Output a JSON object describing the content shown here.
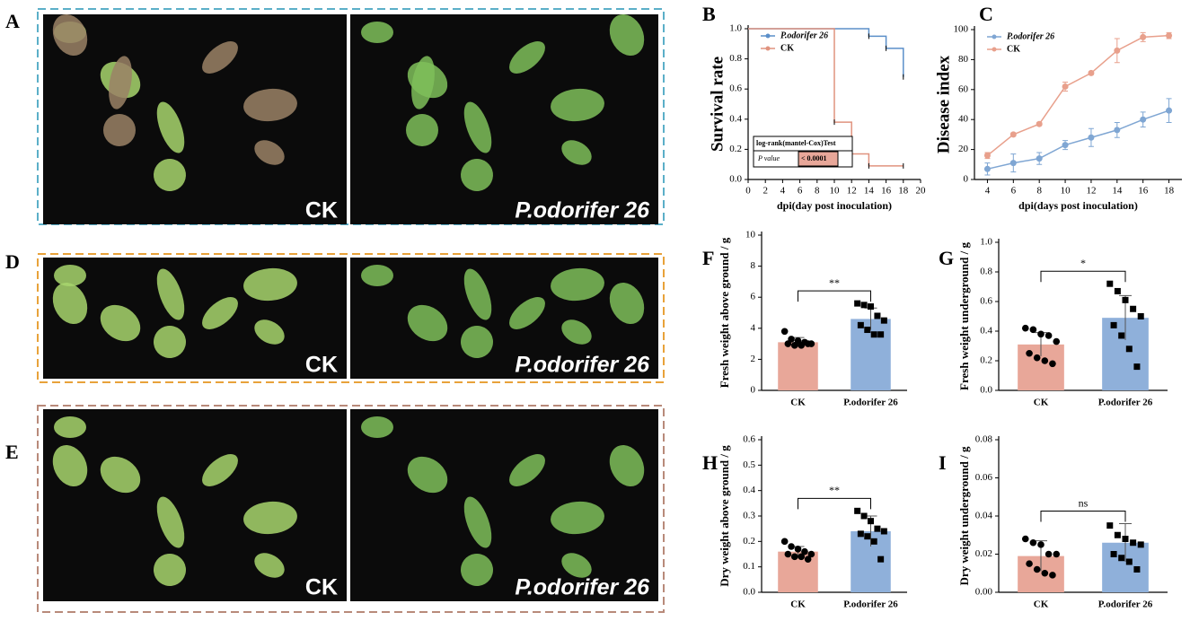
{
  "panel_letters": [
    "A",
    "D",
    "E"
  ],
  "photos": [
    {
      "labels": [
        "CK",
        "P.odorifer 26"
      ]
    },
    {
      "labels": [
        "CK",
        "P.odorifer 26"
      ]
    },
    {
      "labels": [
        "CK",
        "P.odorifer 26"
      ]
    }
  ],
  "chart_data": [
    {
      "type": "step",
      "panel": "B",
      "xlabel": "dpi(day post inoculation)",
      "ylabel": "Survival rate",
      "xlim": [
        0,
        20
      ],
      "xticks": [
        0,
        2,
        4,
        6,
        8,
        10,
        12,
        14,
        16,
        18,
        20
      ],
      "ylim": [
        0,
        1
      ],
      "yticks": [
        {
          "value": 0,
          "label": "0.0"
        },
        0.2,
        0.4,
        0.6,
        0.8,
        {
          "value": 1,
          "label": "1.0"
        }
      ],
      "series": [
        {
          "name": "P.odorifer 26",
          "color": "#5b8fc9",
          "x": [
            0,
            14,
            16,
            18
          ],
          "values": [
            1,
            0.95,
            0.87,
            0.68
          ]
        },
        {
          "name": "CK",
          "color": "#e0937f",
          "x": [
            0,
            10,
            12,
            14,
            18
          ],
          "values": [
            1,
            0.38,
            0.17,
            0.09,
            0.09
          ]
        }
      ],
      "annotation": {
        "header": "log-rank(mantel-Cox)Test",
        "cells": [
          "P value",
          "< 0.0001"
        ]
      }
    },
    {
      "type": "line",
      "panel": "C",
      "xlabel": "dpi(days post inoculation)",
      "ylabel": "Disease index",
      "xlim": [
        3,
        19
      ],
      "xticks": [
        4,
        6,
        8,
        10,
        12,
        14,
        16,
        18
      ],
      "ylim": [
        0,
        100
      ],
      "yticks": [
        0,
        20,
        40,
        60,
        80,
        100
      ],
      "x": [
        4,
        6,
        8,
        10,
        12,
        14,
        16,
        18
      ],
      "series": [
        {
          "name": "P.odorifer 26",
          "color": "#7fa6d3",
          "values": [
            7,
            11,
            14,
            23,
            28,
            33,
            40,
            46
          ],
          "errors": [
            4,
            6,
            4,
            3,
            6,
            5,
            5,
            8
          ]
        },
        {
          "name": "CK",
          "color": "#e8a08c",
          "values": [
            16,
            30,
            37,
            62,
            71,
            86,
            95,
            96
          ],
          "errors": [
            2,
            1,
            1,
            3,
            1,
            8,
            3,
            2
          ]
        }
      ]
    },
    {
      "type": "bar",
      "panel": "F",
      "ylabel": "Fresh weight above ground / g",
      "categories": [
        "CK",
        "P.odorifer 26"
      ],
      "ylim": [
        0,
        10
      ],
      "yticks": [
        0,
        2,
        4,
        6,
        8,
        10
      ],
      "colors": [
        "#e8a799",
        "#8fb0da"
      ],
      "markers": [
        "circle",
        "square"
      ],
      "values": [
        3.1,
        4.6
      ],
      "errors": [
        0.3,
        0.7
      ],
      "significance": "**",
      "points": [
        [
          3.8,
          3.3,
          3.2,
          3.1,
          3.0,
          3.0,
          2.9,
          2.9,
          3.0
        ],
        [
          5.6,
          5.5,
          5.4,
          4.8,
          4.5,
          4.2,
          3.9,
          3.6,
          3.6
        ]
      ]
    },
    {
      "type": "bar",
      "panel": "G",
      "ylabel": "Fresh weight underground / g",
      "categories": [
        "CK",
        "P.odorifer 26"
      ],
      "ylim": [
        0,
        1
      ],
      "yticks": [
        {
          "value": 0,
          "label": "0.0"
        },
        0.2,
        0.4,
        0.6,
        0.8,
        {
          "value": 1,
          "label": "1.0"
        }
      ],
      "colors": [
        "#e8a799",
        "#8fb0da"
      ],
      "markers": [
        "circle",
        "square"
      ],
      "values": [
        0.31,
        0.49
      ],
      "errors": [
        0.08,
        0.15
      ],
      "significance": "*",
      "points": [
        [
          0.42,
          0.41,
          0.38,
          0.37,
          0.33,
          0.25,
          0.22,
          0.2,
          0.18
        ],
        [
          0.72,
          0.67,
          0.61,
          0.55,
          0.5,
          0.44,
          0.37,
          0.28,
          0.16
        ]
      ]
    },
    {
      "type": "bar",
      "panel": "H",
      "ylabel": "Dry weight above ground / g",
      "categories": [
        "CK",
        "P.odorifer 26"
      ],
      "ylim": [
        0,
        0.6
      ],
      "yticks": [
        {
          "value": 0,
          "label": "0.0"
        },
        0.1,
        0.2,
        0.3,
        0.4,
        0.5,
        0.6
      ],
      "colors": [
        "#e8a799",
        "#8fb0da"
      ],
      "markers": [
        "circle",
        "square"
      ],
      "values": [
        0.16,
        0.24
      ],
      "errors": [
        0.02,
        0.06
      ],
      "significance": "**",
      "points": [
        [
          0.2,
          0.18,
          0.17,
          0.16,
          0.15,
          0.15,
          0.14,
          0.14,
          0.13
        ],
        [
          0.32,
          0.3,
          0.28,
          0.25,
          0.24,
          0.23,
          0.22,
          0.2,
          0.13
        ]
      ]
    },
    {
      "type": "bar",
      "panel": "I",
      "ylabel": "Dry weight underground / g",
      "categories": [
        "CK",
        "P.odorifer 26"
      ],
      "ylim": [
        0,
        0.08
      ],
      "yticks": [
        {
          "value": 0,
          "label": "0.00"
        },
        {
          "value": 0.02,
          "label": "0.02"
        },
        {
          "value": 0.04,
          "label": "0.04"
        },
        {
          "value": 0.06,
          "label": "0.06"
        },
        {
          "value": 0.08,
          "label": "0.08"
        }
      ],
      "colors": [
        "#e8a799",
        "#8fb0da"
      ],
      "markers": [
        "circle",
        "square"
      ],
      "values": [
        0.019,
        0.026
      ],
      "errors": [
        0.008,
        0.01
      ],
      "significance": "ns",
      "points": [
        [
          0.028,
          0.026,
          0.025,
          0.02,
          0.02,
          0.015,
          0.012,
          0.01,
          0.009
        ],
        [
          0.035,
          0.03,
          0.028,
          0.026,
          0.025,
          0.02,
          0.018,
          0.016,
          0.012
        ]
      ]
    }
  ]
}
